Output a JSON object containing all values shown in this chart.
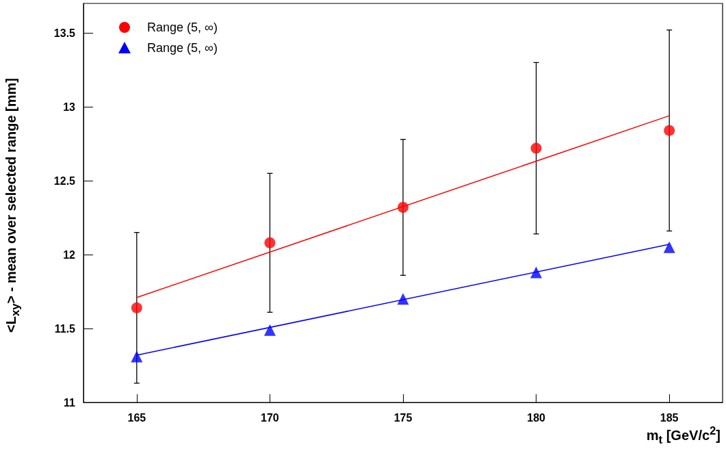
{
  "chart_data": {
    "type": "scatter",
    "xlabel": "m$_{t}$ [GeV/c$^{2}$]",
    "ylabel": "<L$_{xy}$> - mean over selected range [mm]",
    "xlim": [
      163,
      187
    ],
    "xticks": [
      165,
      170,
      175,
      180,
      185
    ],
    "ylim": [
      11,
      13.7
    ],
    "yticks": [
      11,
      11.5,
      12,
      12.5,
      13,
      13.5
    ],
    "grid": false,
    "legend": "top left",
    "series": [
      {
        "name": "Range (5, ∞)",
        "color": "#ff0000",
        "marker": "circle",
        "x": [
          165,
          170,
          175,
          180,
          185
        ],
        "values": [
          11.64,
          12.08,
          12.32,
          12.72,
          12.84
        ],
        "errors": [
          0.51,
          0.47,
          0.46,
          0.58,
          0.68
        ]
      },
      {
        "name": "Range (5, ∞)",
        "color": "#0000ff",
        "marker": "triangle",
        "x": [
          165,
          170,
          175,
          180,
          185
        ],
        "values": [
          11.31,
          11.49,
          11.7,
          11.88,
          12.05
        ]
      },
      {
        "type": "line",
        "color": "#ff0000",
        "marker": "none",
        "x": [
          165,
          185
        ],
        "values": [
          11.71,
          12.94
        ]
      },
      {
        "type": "line",
        "color": "#0000ff",
        "marker": "none",
        "x": [
          165,
          185
        ],
        "values": [
          11.32,
          12.07
        ]
      }
    ]
  }
}
